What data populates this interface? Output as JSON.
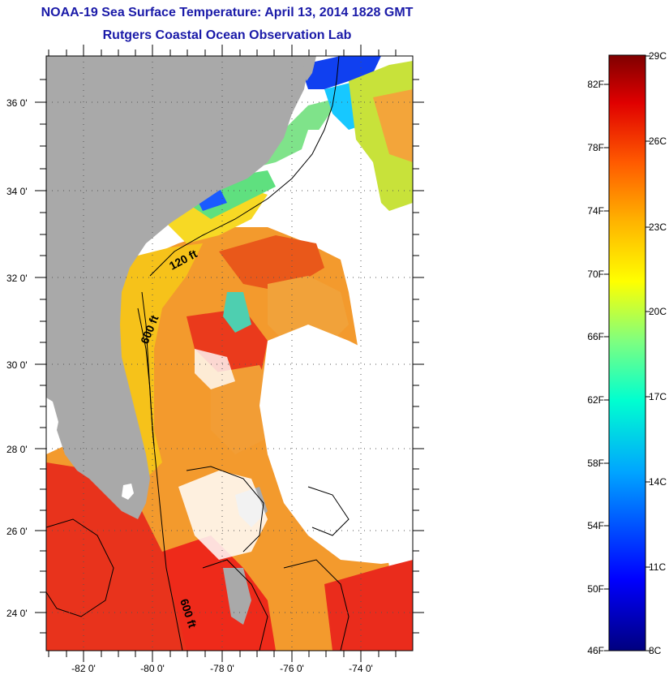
{
  "title_line1": "NOAA-19 Sea Surface Temperature:  April 13, 2014 1828 GMT",
  "title_line2": "Rutgers Coastal Ocean Observation Lab",
  "map": {
    "lat_ticks": [
      "36 0'",
      "34 0'",
      "32 0'",
      "30 0'",
      "28 0'",
      "26 0'",
      "24 0'"
    ],
    "lon_ticks": [
      "-82 0'",
      "-80 0'",
      "-78 0'",
      "-76 0'",
      "-74 0'"
    ],
    "depth_labels": [
      "120 ft",
      "600 ft",
      "600 ft"
    ],
    "colors": {
      "land": "#a9a9a9",
      "cloud": "#ffffff"
    }
  },
  "colorbar": {
    "f_labels": [
      "82F",
      "78F",
      "74F",
      "70F",
      "66F",
      "62F",
      "58F",
      "54F",
      "50F",
      "46F"
    ],
    "c_labels": [
      "29C",
      "26C",
      "23C",
      "20C",
      "17C",
      "14C",
      "11C",
      "8C"
    ]
  }
}
